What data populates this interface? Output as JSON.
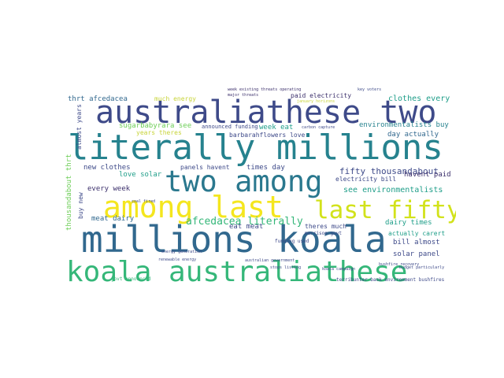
{
  "palette": {
    "dark_purple": "#3b2f6b",
    "indigo": "#3e4a89",
    "blue": "#31688e",
    "teal": "#26828e",
    "green": "#1f9e89",
    "lightgreen": "#35b779",
    "lime": "#6ece58",
    "yellow": "#c8d43a",
    "bright_yellow": "#f4e61e"
  },
  "words": [
    {
      "text": "australiathese two"
    },
    {
      "text": "literally millions"
    },
    {
      "text": "two among"
    },
    {
      "text": "among last"
    },
    {
      "text": "last fifty"
    },
    {
      "text": "millions koala"
    },
    {
      "text": "koala australiathese"
    },
    {
      "text": "afcedacea literally"
    },
    {
      "text": "fifty thousandabout"
    },
    {
      "text": "see environmentalists"
    },
    {
      "text": "clothes every"
    },
    {
      "text": "paid electricity"
    },
    {
      "text": "much energy"
    },
    {
      "text": "thrt afcedacea"
    },
    {
      "text": "sugarbabyrara see"
    },
    {
      "text": "years theres"
    },
    {
      "text": "announced funding"
    },
    {
      "text": "barbarahflowers love"
    },
    {
      "text": "week eat"
    },
    {
      "text": "environmentalists buy"
    },
    {
      "text": "day actually"
    },
    {
      "text": "new clothes"
    },
    {
      "text": "panels havent"
    },
    {
      "text": "times day"
    },
    {
      "text": "love solar"
    },
    {
      "text": "every week"
    },
    {
      "text": "meat dairy"
    },
    {
      "text": "eat meat"
    },
    {
      "text": "havent paid"
    },
    {
      "text": "electricity bill"
    },
    {
      "text": "theres much"
    },
    {
      "text": "dairy times"
    },
    {
      "text": "actually carert"
    },
    {
      "text": "bill almost"
    },
    {
      "text": "solar panel"
    },
    {
      "text": "govt announced"
    },
    {
      "text": "funding used"
    },
    {
      "text": "terribunter back environment bushfires"
    },
    {
      "text": "buy new"
    },
    {
      "text": "thousandabout thrt"
    },
    {
      "text": "almost years"
    },
    {
      "text": "week existing threats operating"
    },
    {
      "text": "major threats"
    },
    {
      "text": "january horizons"
    },
    {
      "text": "key voters"
    },
    {
      "text": "morrison govt"
    },
    {
      "text": "australian government"
    },
    {
      "text": "renewable energy"
    },
    {
      "text": "energy generation"
    },
    {
      "text": "bushfire recovery"
    },
    {
      "text": "carbon capture"
    },
    {
      "text": "stops listing"
    },
    {
      "text": "koala campaign"
    },
    {
      "text": "budget particularly"
    },
    {
      "text": "coal fired"
    }
  ]
}
